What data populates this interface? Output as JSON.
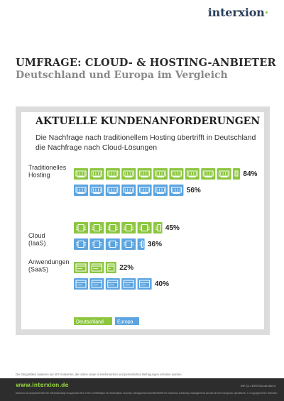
{
  "header": {
    "logo": "interxion",
    "title": "UMFRAGE: CLOUD- & HOSTING-ANBIETER",
    "subtitle": "Deutschland und Europa im Vergleich"
  },
  "colors": {
    "deutschland": "#8cc63f",
    "europa": "#5ba4e0"
  },
  "chart_data": {
    "type": "bar",
    "title": "AKTUELLE KUNDENANFORDERUNGEN",
    "subtitle": "Die Nachfrage nach traditionellem Hosting übertrifft in Deutschland die Nachfrage nach Cloud-Lösungen",
    "categories": [
      [
        "Traditionelles",
        "Hosting"
      ],
      [
        "Cloud",
        "(IaaS)"
      ],
      [
        "Anwendungen",
        "(SaaS)"
      ]
    ],
    "series": [
      {
        "name": "Deutschland",
        "values": [
          84,
          45,
          22
        ],
        "labels": [
          "84%",
          "45%",
          "22%"
        ]
      },
      {
        "name": "Europa",
        "values": [
          56,
          36,
          40
        ],
        "labels": [
          "56%",
          "36%",
          "40%"
        ]
      }
    ],
    "unit_per_icon": 8,
    "legend": "bottom-left",
    "grid": false
  },
  "footer": {
    "footnote": "Die Infografiken basieren auf 407 Antworten, die online sowie in telefonischen und persönlichen Befragungen erhoben wurden.",
    "url": "www.interxion.de",
    "code": "INF-CL-HOST002-de-06/13",
    "legal": "Interxion is compliant with the internationally recognised ISO 27001 certification for information security management and BS25999 for business continuity management across all our European operations. © Copyright 2013 Interxion."
  }
}
